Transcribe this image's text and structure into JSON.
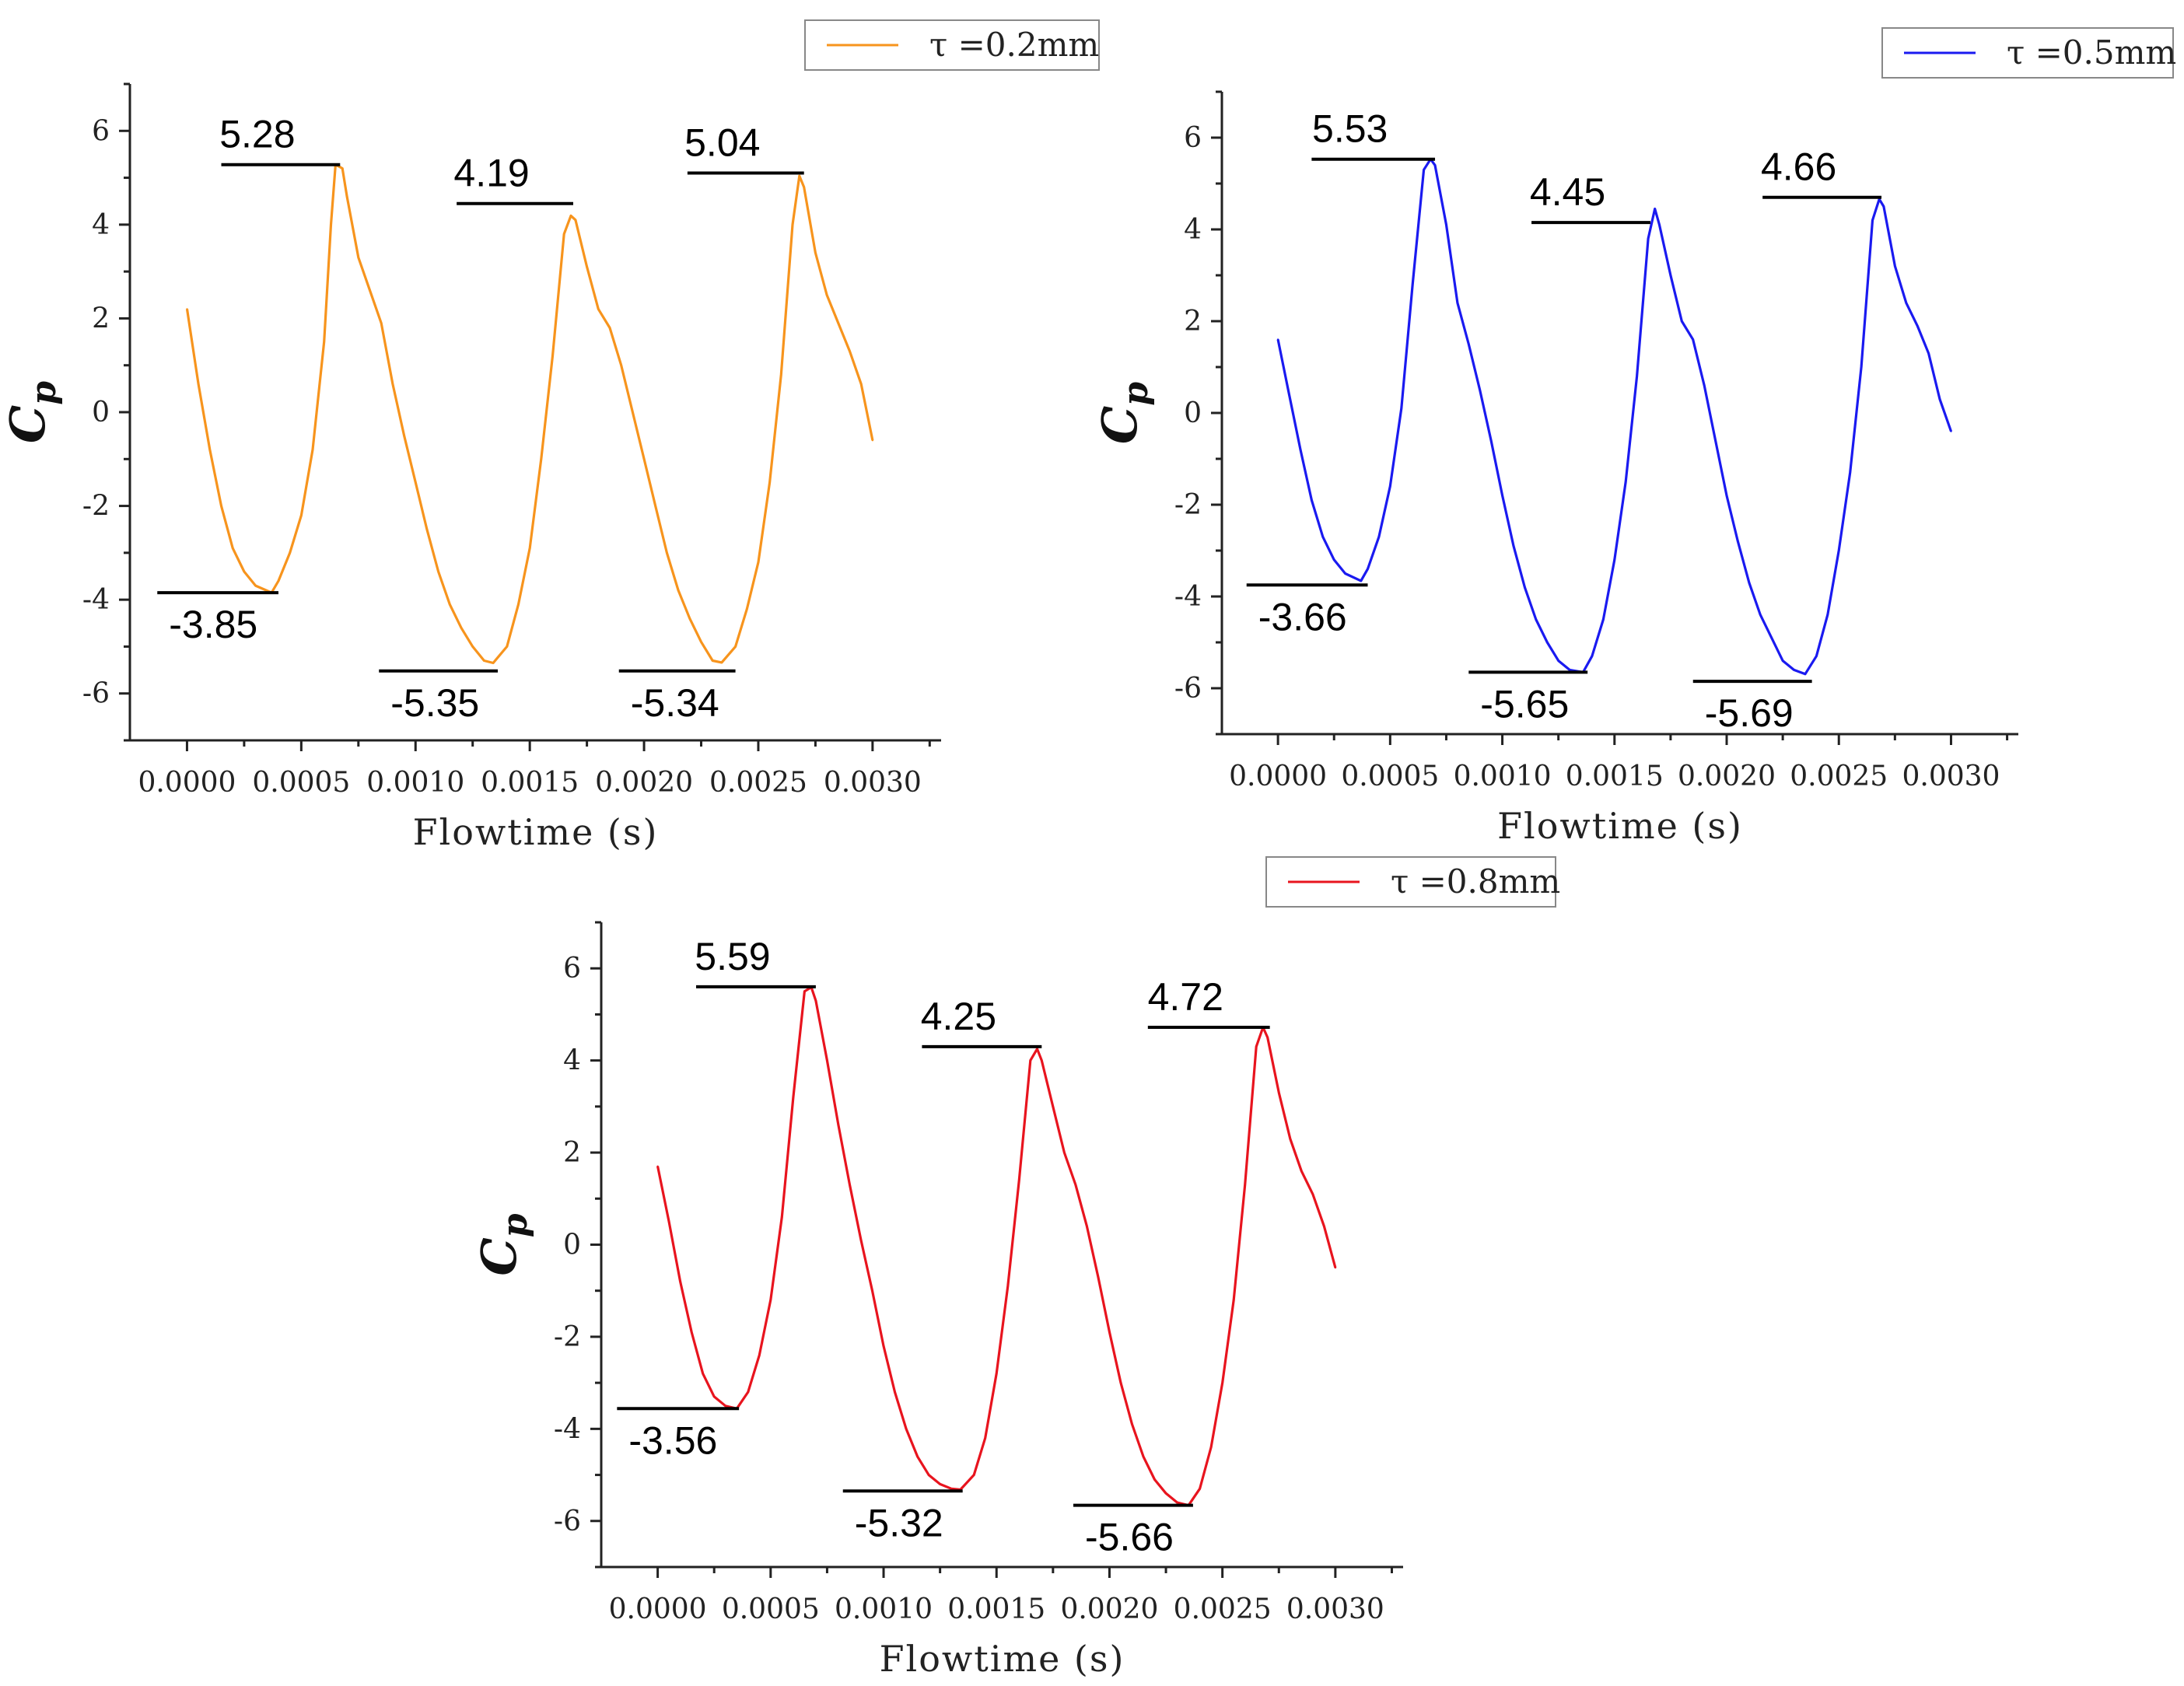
{
  "chart_data": [
    {
      "type": "line",
      "id": "tau02",
      "xlabel": "Flowtime (s)",
      "ylabel": "C",
      "ylabel_sub": "p",
      "xlim": [
        -0.00025,
        0.0033
      ],
      "ylim": [
        -7,
        7
      ],
      "xticks": [
        0,
        0.0005,
        0.001,
        0.0015,
        0.002,
        0.0025,
        0.003
      ],
      "xtick_labels": [
        "0.0000",
        "0.0005",
        "0.0010",
        "0.0015",
        "0.0020",
        "0.0025",
        "0.0030"
      ],
      "yticks": [
        -6,
        -4,
        -2,
        0,
        2,
        4,
        6
      ],
      "ytick_labels": [
        "-6",
        "-4",
        "-2",
        "0",
        "2",
        "4",
        "6"
      ],
      "series": [
        {
          "name": "τ =0.2mm",
          "color": "#F7941D",
          "x": [
            0,
            5e-05,
            0.0001,
            0.00015,
            0.0002,
            0.00025,
            0.0003,
            0.00037,
            0.0004,
            0.00045,
            0.0005,
            0.00055,
            0.0006,
            0.00063,
            0.00065,
            0.00068,
            0.0007,
            0.00075,
            0.0008,
            0.00085,
            0.0009,
            0.00095,
            0.001,
            0.00105,
            0.0011,
            0.00115,
            0.0012,
            0.00125,
            0.0013,
            0.00134,
            0.0014,
            0.00145,
            0.0015,
            0.00155,
            0.0016,
            0.00165,
            0.00168,
            0.0017,
            0.00175,
            0.0018,
            0.00185,
            0.0019,
            0.00195,
            0.002,
            0.00205,
            0.0021,
            0.00215,
            0.0022,
            0.00225,
            0.0023,
            0.00234,
            0.0024,
            0.00245,
            0.0025,
            0.00255,
            0.0026,
            0.00265,
            0.00268,
            0.0027,
            0.00275,
            0.0028,
            0.00285,
            0.0029,
            0.00295,
            0.003
          ],
          "y": [
            2.2,
            0.6,
            -0.8,
            -2.0,
            -2.9,
            -3.4,
            -3.7,
            -3.85,
            -3.6,
            -3.0,
            -2.2,
            -0.8,
            1.5,
            4.0,
            5.28,
            5.2,
            4.6,
            3.3,
            2.6,
            1.9,
            0.6,
            -0.5,
            -1.5,
            -2.5,
            -3.4,
            -4.1,
            -4.6,
            -5.0,
            -5.3,
            -5.35,
            -5.0,
            -4.1,
            -2.9,
            -1.0,
            1.2,
            3.8,
            4.19,
            4.1,
            3.1,
            2.2,
            1.8,
            1.0,
            0.0,
            -1.0,
            -2.0,
            -3.0,
            -3.8,
            -4.4,
            -4.9,
            -5.3,
            -5.34,
            -5.0,
            -4.2,
            -3.2,
            -1.5,
            0.8,
            4.0,
            5.04,
            4.8,
            3.4,
            2.5,
            1.9,
            1.3,
            0.6,
            -0.6
          ]
        }
      ],
      "legend": "top-right",
      "annotations": [
        {
          "text": "5.28",
          "y": 5.28,
          "x1": 0.00015,
          "x2": 0.00067,
          "pos": "above"
        },
        {
          "text": "4.19",
          "y": 4.45,
          "x1": 0.00118,
          "x2": 0.00169,
          "pos": "above"
        },
        {
          "text": "5.04",
          "y": 5.1,
          "x1": 0.00219,
          "x2": 0.0027,
          "pos": "above"
        },
        {
          "text": "-3.85",
          "y": -3.85,
          "x1": -0.00013,
          "x2": 0.0004,
          "pos": "below"
        },
        {
          "text": "-5.35",
          "y": -5.52,
          "x1": 0.00084,
          "x2": 0.00136,
          "pos": "below"
        },
        {
          "text": "-5.34",
          "y": -5.52,
          "x1": 0.00189,
          "x2": 0.0024,
          "pos": "below"
        }
      ]
    },
    {
      "type": "line",
      "id": "tau05",
      "xlabel": "Flowtime (s)",
      "ylabel": "C",
      "ylabel_sub": "p",
      "xlim": [
        -0.00025,
        0.0033
      ],
      "ylim": [
        -7,
        7
      ],
      "xticks": [
        0,
        0.0005,
        0.001,
        0.0015,
        0.002,
        0.0025,
        0.003
      ],
      "xtick_labels": [
        "0.0000",
        "0.0005",
        "0.0010",
        "0.0015",
        "0.0020",
        "0.0025",
        "0.0030"
      ],
      "yticks": [
        -6,
        -4,
        -2,
        0,
        2,
        4,
        6
      ],
      "ytick_labels": [
        "-6",
        "-4",
        "-2",
        "0",
        "2",
        "4",
        "6"
      ],
      "series": [
        {
          "name": "τ =0.5mm",
          "color": "#1A1AF0",
          "x": [
            0,
            5e-05,
            0.0001,
            0.00015,
            0.0002,
            0.00025,
            0.0003,
            0.00037,
            0.0004,
            0.00045,
            0.0005,
            0.00055,
            0.0006,
            0.00065,
            0.00068,
            0.0007,
            0.00075,
            0.0008,
            0.00085,
            0.0009,
            0.00095,
            0.001,
            0.00105,
            0.0011,
            0.00115,
            0.0012,
            0.00125,
            0.0013,
            0.00136,
            0.0014,
            0.00145,
            0.0015,
            0.00155,
            0.0016,
            0.00165,
            0.00168,
            0.0017,
            0.00175,
            0.0018,
            0.00185,
            0.0019,
            0.00195,
            0.002,
            0.00205,
            0.0021,
            0.00215,
            0.0022,
            0.00225,
            0.0023,
            0.00235,
            0.0024,
            0.00245,
            0.0025,
            0.00255,
            0.0026,
            0.00265,
            0.00268,
            0.0027,
            0.00275,
            0.0028,
            0.00285,
            0.0029,
            0.00295,
            0.003
          ],
          "y": [
            1.6,
            0.4,
            -0.8,
            -1.9,
            -2.7,
            -3.2,
            -3.5,
            -3.66,
            -3.4,
            -2.7,
            -1.6,
            0.1,
            2.8,
            5.3,
            5.53,
            5.4,
            4.1,
            2.4,
            1.5,
            0.5,
            -0.6,
            -1.8,
            -2.9,
            -3.8,
            -4.5,
            -5.0,
            -5.4,
            -5.6,
            -5.65,
            -5.3,
            -4.5,
            -3.2,
            -1.5,
            0.8,
            3.8,
            4.45,
            4.1,
            3.0,
            2.0,
            1.6,
            0.6,
            -0.6,
            -1.8,
            -2.8,
            -3.7,
            -4.4,
            -4.9,
            -5.4,
            -5.6,
            -5.69,
            -5.3,
            -4.4,
            -3.0,
            -1.3,
            1.0,
            4.2,
            4.66,
            4.5,
            3.2,
            2.4,
            1.9,
            1.3,
            0.3,
            -0.4
          ]
        }
      ],
      "legend": "top-right",
      "annotations": [
        {
          "text": "5.53",
          "y": 5.53,
          "x1": 0.00015,
          "x2": 0.0007,
          "pos": "above"
        },
        {
          "text": "4.45",
          "y": 4.15,
          "x1": 0.00113,
          "x2": 0.00166,
          "pos": "above"
        },
        {
          "text": "4.66",
          "y": 4.7,
          "x1": 0.00216,
          "x2": 0.00269,
          "pos": "above"
        },
        {
          "text": "-3.66",
          "y": -3.75,
          "x1": -0.00014,
          "x2": 0.0004,
          "pos": "below"
        },
        {
          "text": "-5.65",
          "y": -5.65,
          "x1": 0.00085,
          "x2": 0.00138,
          "pos": "below"
        },
        {
          "text": "-5.69",
          "y": -5.85,
          "x1": 0.00185,
          "x2": 0.00238,
          "pos": "below"
        }
      ]
    },
    {
      "type": "line",
      "id": "tau08",
      "xlabel": "Flowtime (s)",
      "ylabel": "C",
      "ylabel_sub": "p",
      "xlim": [
        -0.00025,
        0.0033
      ],
      "ylim": [
        -7,
        7
      ],
      "xticks": [
        0,
        0.0005,
        0.001,
        0.0015,
        0.002,
        0.0025,
        0.003
      ],
      "xtick_labels": [
        "0.0000",
        "0.0005",
        "0.0010",
        "0.0015",
        "0.0020",
        "0.0025",
        "0.0030"
      ],
      "yticks": [
        -6,
        -4,
        -2,
        0,
        2,
        4,
        6
      ],
      "ytick_labels": [
        "-6",
        "-4",
        "-2",
        "0",
        "2",
        "4",
        "6"
      ],
      "series": [
        {
          "name": "τ =0.8mm",
          "color": "#E8141E",
          "x": [
            0,
            5e-05,
            0.0001,
            0.00015,
            0.0002,
            0.00025,
            0.0003,
            0.00035,
            0.0004,
            0.00045,
            0.0005,
            0.00055,
            0.0006,
            0.00065,
            0.00068,
            0.0007,
            0.00075,
            0.0008,
            0.00085,
            0.0009,
            0.00095,
            0.001,
            0.00105,
            0.0011,
            0.00115,
            0.0012,
            0.00125,
            0.0013,
            0.00134,
            0.0014,
            0.00145,
            0.0015,
            0.00155,
            0.0016,
            0.00165,
            0.00168,
            0.0017,
            0.00175,
            0.0018,
            0.00185,
            0.0019,
            0.00195,
            0.002,
            0.00205,
            0.0021,
            0.00215,
            0.0022,
            0.00225,
            0.0023,
            0.00235,
            0.0024,
            0.00245,
            0.0025,
            0.00255,
            0.0026,
            0.00265,
            0.00268,
            0.0027,
            0.00275,
            0.0028,
            0.00285,
            0.0029,
            0.00295,
            0.003
          ],
          "y": [
            1.7,
            0.5,
            -0.8,
            -1.9,
            -2.8,
            -3.3,
            -3.5,
            -3.56,
            -3.2,
            -2.4,
            -1.2,
            0.6,
            3.2,
            5.5,
            5.59,
            5.3,
            4.0,
            2.6,
            1.3,
            0.1,
            -1.0,
            -2.2,
            -3.2,
            -4.0,
            -4.6,
            -5.0,
            -5.2,
            -5.3,
            -5.32,
            -5.0,
            -4.2,
            -2.8,
            -0.9,
            1.4,
            4.0,
            4.25,
            4.0,
            3.0,
            2.0,
            1.3,
            0.4,
            -0.7,
            -1.9,
            -3.0,
            -3.9,
            -4.6,
            -5.1,
            -5.4,
            -5.6,
            -5.66,
            -5.3,
            -4.4,
            -3.0,
            -1.2,
            1.3,
            4.3,
            4.72,
            4.5,
            3.3,
            2.3,
            1.6,
            1.1,
            0.4,
            -0.5
          ]
        }
      ],
      "legend": "top-right",
      "annotations": [
        {
          "text": "5.59",
          "y": 5.6,
          "x1": 0.00017,
          "x2": 0.0007,
          "pos": "above"
        },
        {
          "text": "4.25",
          "y": 4.3,
          "x1": 0.00117,
          "x2": 0.0017,
          "pos": "above"
        },
        {
          "text": "4.72",
          "y": 4.72,
          "x1": 0.00217,
          "x2": 0.00271,
          "pos": "above"
        },
        {
          "text": "-3.56",
          "y": -3.56,
          "x1": -0.00018,
          "x2": 0.00036,
          "pos": "below"
        },
        {
          "text": "-5.32",
          "y": -5.35,
          "x1": 0.00082,
          "x2": 0.00135,
          "pos": "below"
        },
        {
          "text": "-5.66",
          "y": -5.66,
          "x1": 0.00184,
          "x2": 0.00237,
          "pos": "below"
        }
      ]
    }
  ]
}
